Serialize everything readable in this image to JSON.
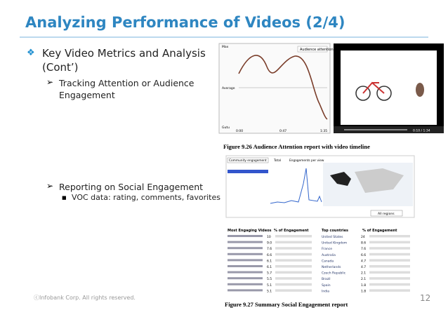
{
  "header": {
    "title": "Analyzing Performance of Videos (2/4)"
  },
  "bullets": [
    {
      "text": "Key Video Metrics and Analysis (Cont’)",
      "sub": [
        {
          "text": "Tracking Attention or Audience Engagement"
        }
      ]
    },
    {
      "text": "Reporting on Social Engagement",
      "sub": [
        {
          "text": "VOC data: rating, comments, favorites"
        }
      ]
    }
  ],
  "figure1": {
    "caption": "Figure 9.26  Audience Attention report with video timeline",
    "legend": "Audience attention",
    "y_labels": [
      "Max",
      "Average",
      "Gutu"
    ],
    "x_labels": [
      "0:00",
      "0:47",
      "1:35"
    ],
    "player_time": "0:10 / 1:34"
  },
  "figure2": {
    "caption": "Figure 9.27  Summary Social Engagement report",
    "dropdown": "Community engagement",
    "total_label": "Total",
    "chart_title": "Engagements per view",
    "region_select": "All regions",
    "videos_header": [
      "Most Engaging Videos",
      "% of Engagement"
    ],
    "video_values": [
      "10",
      "9.0",
      "7.6",
      "6.6",
      "6.1",
      "6.1",
      "5.7",
      "5.5",
      "5.1",
      "5.1"
    ],
    "countries_header": [
      "Top countries",
      "% of Engagement"
    ],
    "countries": [
      [
        "United States",
        "24"
      ],
      [
        "United Kingdom",
        "8.6"
      ],
      [
        "France",
        "7.6"
      ],
      [
        "Australia",
        "6.6"
      ],
      [
        "Canada",
        "4.7"
      ],
      [
        "Netherlands",
        "4.7"
      ],
      [
        "Czech Republic",
        "2.1"
      ],
      [
        "Brazil",
        "2.1"
      ],
      [
        "Spain",
        "1.8"
      ],
      [
        "India",
        "1.8"
      ]
    ]
  },
  "footer": {
    "copyright": "ⓒInfobank Corp. All rights reserved.",
    "page": "12"
  }
}
